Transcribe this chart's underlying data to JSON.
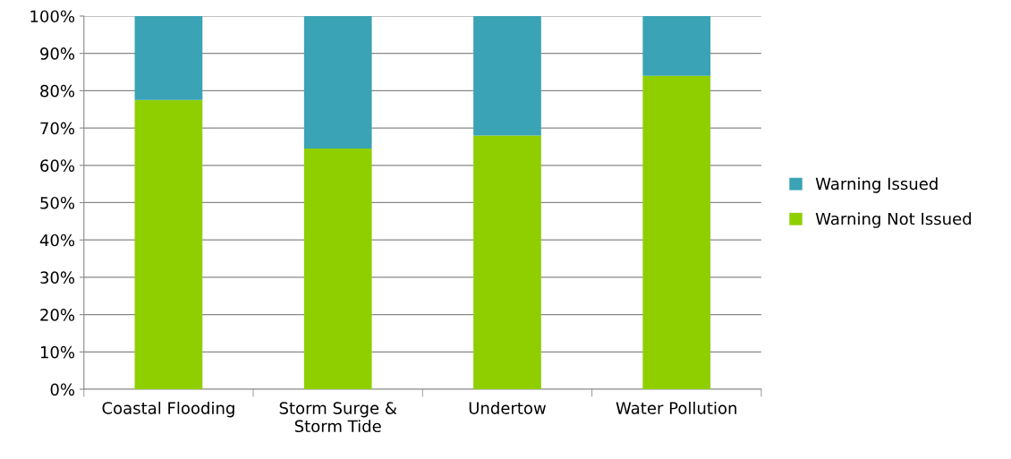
{
  "chart_data": {
    "type": "bar",
    "stacked": true,
    "categories": [
      "Coastal Flooding",
      "Storm Surge &\nStorm Tide",
      "Undertow",
      "Water Pollution"
    ],
    "series": [
      {
        "name": "Warning Not Issued",
        "color": "#8fcf00",
        "values": [
          77.5,
          64.5,
          68,
          84
        ]
      },
      {
        "name": "Warning Issued",
        "color": "#3aa3b5",
        "values": [
          22.5,
          35.5,
          32,
          16
        ]
      }
    ],
    "ylim": [
      0,
      100
    ],
    "yticks": [
      {
        "value": 0,
        "label": "0%"
      },
      {
        "value": 10,
        "label": "10%"
      },
      {
        "value": 20,
        "label": "20%"
      },
      {
        "value": 30,
        "label": "30%"
      },
      {
        "value": 40,
        "label": "40%"
      },
      {
        "value": 50,
        "label": "50%"
      },
      {
        "value": 60,
        "label": "60%"
      },
      {
        "value": 70,
        "label": "70%"
      },
      {
        "value": 80,
        "label": "80%"
      },
      {
        "value": 90,
        "label": "90%"
      },
      {
        "value": 100,
        "label": "100%"
      }
    ],
    "grid": "y",
    "legend": "right"
  }
}
